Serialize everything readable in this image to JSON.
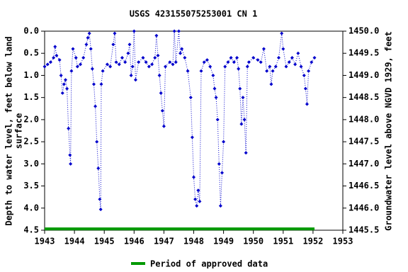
{
  "chart_data": {
    "type": "scatter",
    "title": "USGS 423155075253001 CN   1",
    "y_label_lines": [
      "Depth to water level, feet below land",
      "surface"
    ],
    "y2_label": "Groundwater level above NGVD 1929, feet",
    "xlim": [
      1943,
      1953
    ],
    "xticks": [
      1943,
      1944,
      1945,
      1946,
      1947,
      1948,
      1949,
      1950,
      1951,
      1952,
      1953
    ],
    "ylim": [
      0,
      4.5
    ],
    "yticks": [
      {
        "value": 0,
        "label": "0.0"
      },
      0.5,
      {
        "value": 1,
        "label": "1.0"
      },
      1.5,
      {
        "value": 2,
        "label": "2.0"
      },
      2.5,
      {
        "value": 3,
        "label": "3.0"
      },
      3.5,
      {
        "value": 4,
        "label": "4.0"
      },
      4.5
    ],
    "y2lim": [
      1450,
      1445.5
    ],
    "y2ticks": [
      {
        "value": 1450,
        "label": "1450.0"
      },
      1449.5,
      {
        "value": 1449,
        "label": "1449.0"
      },
      1448.5,
      {
        "value": 1448,
        "label": "1448.0"
      },
      1447.5,
      {
        "value": 1447,
        "label": "1447.0"
      },
      1446.5,
      {
        "value": 1446,
        "label": "1446.0"
      },
      1445.5
    ],
    "series": [
      {
        "color": "#0000cc",
        "x": [
          1943.0,
          1943.1,
          1943.2,
          1943.3,
          1943.35,
          1943.4,
          1943.5,
          1943.55,
          1943.6,
          1943.65,
          1943.7,
          1943.75,
          1943.8,
          1943.85,
          1943.87,
          1943.9,
          1943.95,
          1944.05,
          1944.1,
          1944.2,
          1944.3,
          1944.4,
          1944.45,
          1944.5,
          1944.55,
          1944.6,
          1944.65,
          1944.7,
          1944.75,
          1944.8,
          1944.85,
          1944.88,
          1944.9,
          1944.95,
          1945.1,
          1945.2,
          1945.3,
          1945.35,
          1945.4,
          1945.5,
          1945.6,
          1945.7,
          1945.8,
          1945.85,
          1945.9,
          1945.95,
          1946.0,
          1946.05,
          1946.15,
          1946.3,
          1946.4,
          1946.5,
          1946.6,
          1946.7,
          1946.75,
          1946.8,
          1946.85,
          1946.9,
          1946.95,
          1947.0,
          1947.05,
          1947.2,
          1947.3,
          1947.35,
          1947.4,
          1947.5,
          1947.55,
          1947.6,
          1947.7,
          1947.8,
          1947.9,
          1947.95,
          1948.0,
          1948.05,
          1948.1,
          1948.15,
          1948.2,
          1948.25,
          1948.35,
          1948.45,
          1948.55,
          1948.65,
          1948.7,
          1948.75,
          1948.8,
          1948.85,
          1948.9,
          1948.95,
          1949.0,
          1949.05,
          1949.15,
          1949.25,
          1949.35,
          1949.45,
          1949.5,
          1949.55,
          1949.6,
          1949.65,
          1949.7,
          1949.75,
          1949.8,
          1949.85,
          1950.0,
          1950.15,
          1950.25,
          1950.35,
          1950.45,
          1950.55,
          1950.6,
          1950.65,
          1950.75,
          1950.85,
          1950.95,
          1951.0,
          1951.1,
          1951.2,
          1951.3,
          1951.4,
          1951.5,
          1951.6,
          1951.7,
          1951.75,
          1951.8,
          1951.85,
          1951.95,
          1952.05
        ],
        "values": [
          0.8,
          0.75,
          0.7,
          0.6,
          0.35,
          0.55,
          0.65,
          1.0,
          1.4,
          1.2,
          1.1,
          1.3,
          2.2,
          2.8,
          3.0,
          0.9,
          0.4,
          0.6,
          0.8,
          0.75,
          0.6,
          0.3,
          0.15,
          0.05,
          0.4,
          0.85,
          1.2,
          1.7,
          2.5,
          3.1,
          3.8,
          4.03,
          1.2,
          0.9,
          0.75,
          0.8,
          0.3,
          0.05,
          0.7,
          0.75,
          0.6,
          0.7,
          0.5,
          0.3,
          1.0,
          0.8,
          0.0,
          1.1,
          0.7,
          0.6,
          0.7,
          0.8,
          0.75,
          0.6,
          0.1,
          0.55,
          1.0,
          1.4,
          1.8,
          2.15,
          0.8,
          0.7,
          0.75,
          0.0,
          0.7,
          0.0,
          0.5,
          0.4,
          0.6,
          0.9,
          1.5,
          2.4,
          3.3,
          3.8,
          3.95,
          3.6,
          3.85,
          0.9,
          0.7,
          0.65,
          0.8,
          1.0,
          1.3,
          1.5,
          2.0,
          3.0,
          3.95,
          3.2,
          2.5,
          0.8,
          0.7,
          0.6,
          0.7,
          0.6,
          0.85,
          1.3,
          2.1,
          1.5,
          2.0,
          2.75,
          0.8,
          0.7,
          0.6,
          0.65,
          0.7,
          0.4,
          0.9,
          0.8,
          1.2,
          0.9,
          0.8,
          0.6,
          0.05,
          0.4,
          0.8,
          0.7,
          0.6,
          0.75,
          0.5,
          0.8,
          1.0,
          1.3,
          1.65,
          0.9,
          0.7,
          0.6
        ]
      }
    ],
    "approved_period": {
      "name": "Period of approved data",
      "color": "#009900",
      "x": [
        1943,
        1952.05
      ],
      "values": [
        4.47,
        4.47
      ]
    }
  }
}
